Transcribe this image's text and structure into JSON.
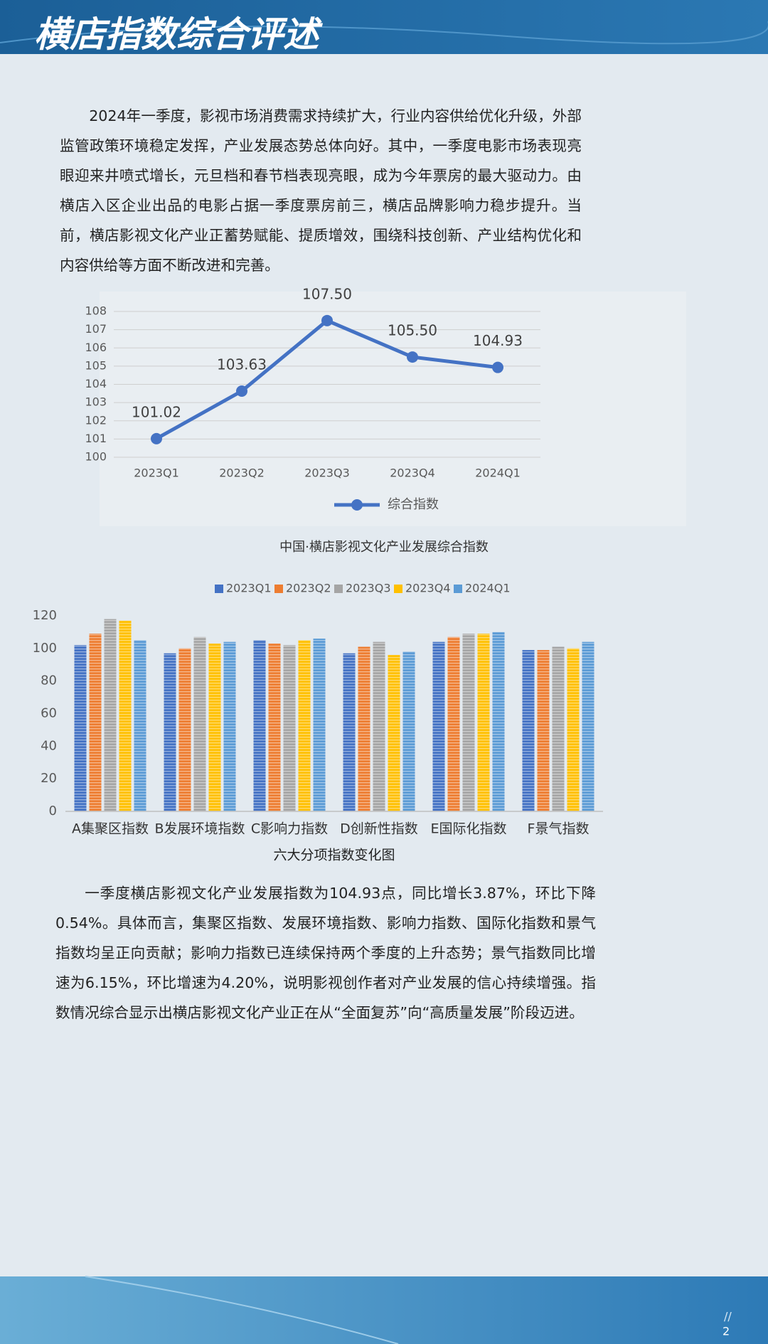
{
  "header": {
    "title": "横店指数综合评述"
  },
  "paragraphs": [
    "2024年一季度，影视市场消费需求持续扩大，行业内容供给优化升级，外部监管政策环境稳定发挥，产业发展态势总体向好。其中，一季度电影市场表现亮眼迎来井喷式增长，元旦档和春节档表现亮眼，成为今年票房的最大驱动力。由横店入区企业出品的电影占据一季度票房前三，横店品牌影响力稳步提升。当前，横店影视文化产业正蓄势赋能、提质增效，围绕科技创新、产业结构优化和内容供给等方面不断改进和完善。",
    "一季度横店影视文化产业发展指数为104.93点，同比增长3.87%，环比下降0.54%。具体而言，集聚区指数、发展环境指数、影响力指数、国际化指数和景气指数均呈正向贡献；影响力指数已连续保持两个季度的上升态势；景气指数同比增速为6.15%，环比增速为4.20%，说明影视创作者对产业发展的信心持续增强。指数情况综合显示出横店影视文化产业正在从“全面复苏”向“高质量发展”阶段迈进。"
  ],
  "chart_data": [
    {
      "type": "line",
      "title": "中国·横店影视文化产业发展综合指数",
      "categories": [
        "2023Q1",
        "2023Q2",
        "2023Q3",
        "2023Q4",
        "2024Q1"
      ],
      "series": [
        {
          "name": "综合指数",
          "color": "#4472c4",
          "values": [
            101.02,
            103.63,
            107.5,
            105.5,
            104.93
          ],
          "value_labels": [
            "101.02",
            "103.63",
            "107.50",
            "105.50",
            "104.93"
          ]
        }
      ],
      "ylim": [
        100,
        108
      ],
      "yticks": [
        100,
        101,
        102,
        103,
        104,
        105,
        106,
        107,
        108
      ],
      "grid": true,
      "legend": "bottom"
    },
    {
      "type": "bar",
      "title": "六大分项指数变化图",
      "categories": [
        "A集聚区指数",
        "B发展环境指数",
        "C影响力指数",
        "D创新性指数",
        "E国际化指数",
        "F景气指数"
      ],
      "series": [
        {
          "name": "2023Q1",
          "color": "#4472c4",
          "values": [
            102,
            97,
            105,
            97,
            104,
            99
          ]
        },
        {
          "name": "2023Q2",
          "color": "#ed7d31",
          "values": [
            109,
            100,
            103,
            101,
            107,
            99
          ]
        },
        {
          "name": "2023Q3",
          "color": "#a5a5a5",
          "values": [
            118,
            107,
            102,
            104,
            109,
            101
          ]
        },
        {
          "name": "2023Q4",
          "color": "#ffc000",
          "values": [
            117,
            103,
            105,
            96,
            109,
            100
          ]
        },
        {
          "name": "2024Q1",
          "color": "#5b9bd5",
          "values": [
            105,
            104,
            106,
            98,
            110,
            104
          ]
        }
      ],
      "ylim": [
        0,
        120
      ],
      "yticks": [
        0,
        20,
        40,
        60,
        80,
        100,
        120
      ],
      "grid": false,
      "legend": "top"
    }
  ],
  "page_number": "2"
}
